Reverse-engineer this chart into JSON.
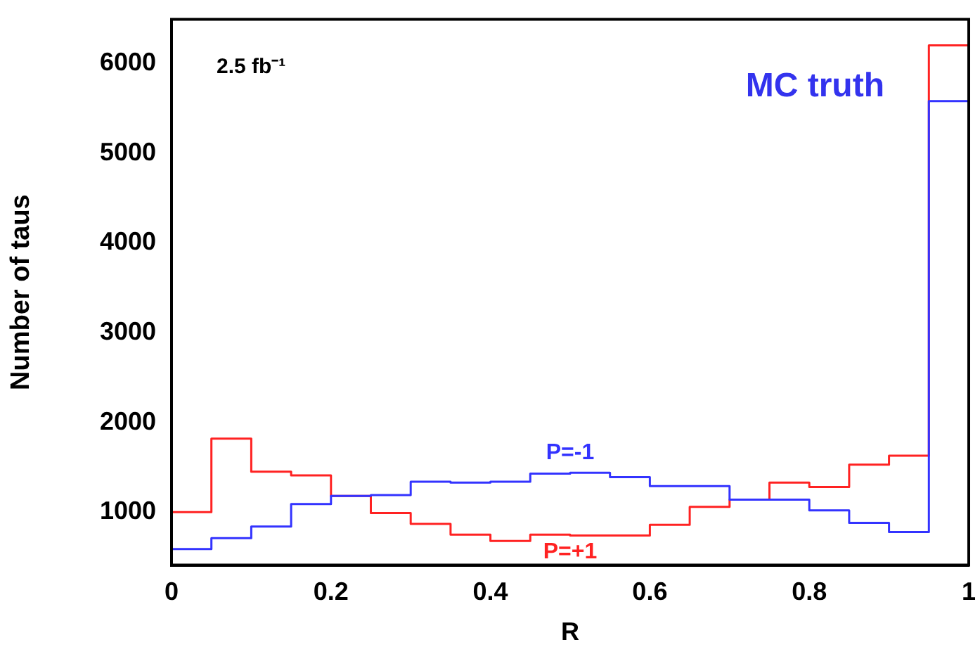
{
  "chart_data": {
    "type": "histogram",
    "xlabel": "R",
    "ylabel": "Number of taus",
    "annotations": [
      "2.5 fb⁻¹",
      "MC truth"
    ],
    "bins": [
      0,
      0.05,
      0.1,
      0.15,
      0.2,
      0.25,
      0.3,
      0.35,
      0.4,
      0.45,
      0.5,
      0.55,
      0.6,
      0.65,
      0.7,
      0.75,
      0.8,
      0.85,
      0.9,
      0.95,
      1
    ],
    "series": [
      {
        "name": "P=-1",
        "color": "#3333ff",
        "values": [
          590,
          710,
          840,
          1090,
          1180,
          1190,
          1340,
          1330,
          1340,
          1430,
          1440,
          1390,
          1290,
          1290,
          1140,
          1140,
          1020,
          880,
          780,
          5580
        ]
      },
      {
        "name": "P=+1",
        "color": "#ff2222",
        "values": [
          1000,
          1820,
          1450,
          1410,
          1180,
          990,
          870,
          750,
          680,
          750,
          740,
          740,
          860,
          1060,
          1140,
          1330,
          1280,
          1530,
          1630,
          6200
        ]
      }
    ],
    "xlim": [
      0,
      1
    ],
    "xticks": [
      0,
      0.2,
      0.4,
      0.6,
      0.8,
      1
    ],
    "ylim": [
      410,
      6490
    ],
    "yticks": [
      1000,
      2000,
      3000,
      4000,
      5000,
      6000
    ],
    "grid": false,
    "legend": false
  }
}
